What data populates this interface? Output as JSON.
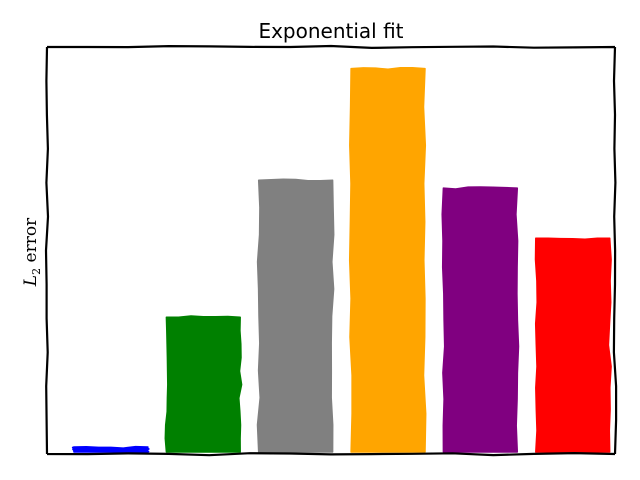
{
  "chart_data": {
    "type": "bar",
    "title": "Exponential fit",
    "ylabel": "L",
    "ylabel_subscript": "2",
    "ylabel_suffix": " error",
    "xlabel": "",
    "ylim": [
      0,
      1.0
    ],
    "grid": false,
    "legend": "none",
    "ticks_visible": false,
    "style": "xkcd hand-drawn",
    "values": [
      0.015,
      0.355,
      0.71,
      1.0,
      0.69,
      0.56
    ],
    "colors": [
      "#0000ff",
      "#008000",
      "#808080",
      "#ffa500",
      "#800080",
      "#ff0000"
    ]
  }
}
